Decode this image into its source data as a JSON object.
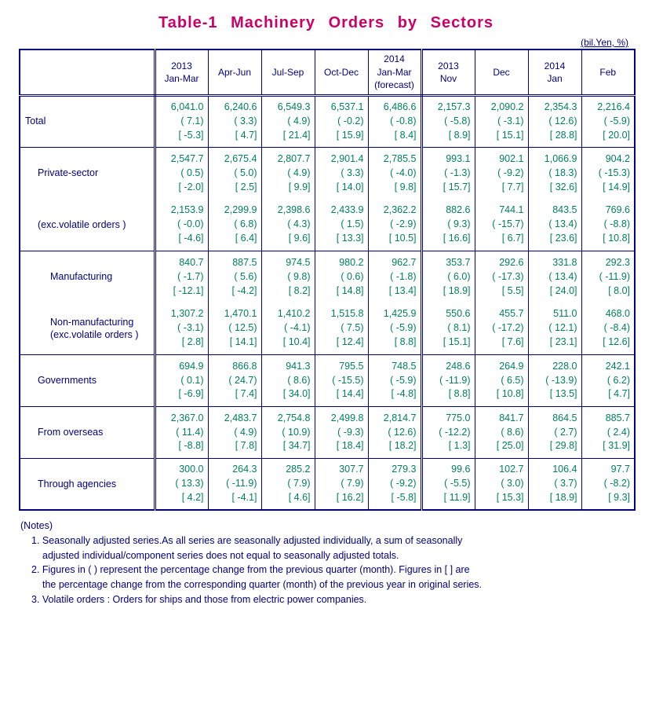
{
  "title": "Table-1  Machinery  Orders  by  Sectors",
  "unit_label": "(bil.Yen, %)",
  "columns": [
    "2013\nJan-Mar",
    "Apr-Jun",
    "Jul-Sep",
    "Oct-Dec",
    "2014\nJan-Mar\n(forecast)",
    "2013\nNov",
    "Dec",
    "2014\nJan",
    "Feb"
  ],
  "column_sep_double_after": [
    4
  ],
  "rows": [
    {
      "label": "Total",
      "indent": 0,
      "cells": [
        {
          "v": "6,041.0",
          "p": "( 7.1)",
          "b": "[ -5.3]"
        },
        {
          "v": "6,240.6",
          "p": "( 3.3)",
          "b": "[ 4.7]"
        },
        {
          "v": "6,549.3",
          "p": "( 4.9)",
          "b": "[ 21.4]"
        },
        {
          "v": "6,537.1",
          "p": "( -0.2)",
          "b": "[ 15.9]"
        },
        {
          "v": "6,486.6",
          "p": "( -0.8)",
          "b": "[ 8.4]"
        },
        {
          "v": "2,157.3",
          "p": "( -5.8)",
          "b": "[ 8.9]"
        },
        {
          "v": "2,090.2",
          "p": "( -3.1)",
          "b": "[ 15.1]"
        },
        {
          "v": "2,354.3",
          "p": "( 12.6)",
          "b": "[ 28.8]"
        },
        {
          "v": "2,216.4",
          "p": "( -5.9)",
          "b": "[ 20.0]"
        }
      ]
    },
    {
      "label": "Private-sector",
      "indent": 1,
      "no_bottom_border": true,
      "cells": [
        {
          "v": "2,547.7",
          "p": "( 0.5)",
          "b": "[ -2.0]"
        },
        {
          "v": "2,675.4",
          "p": "( 5.0)",
          "b": "[ 2.5]"
        },
        {
          "v": "2,807.7",
          "p": "( 4.9)",
          "b": "[ 9.9]"
        },
        {
          "v": "2,901.4",
          "p": "( 3.3)",
          "b": "[ 14.0]"
        },
        {
          "v": "2,785.5",
          "p": "( -4.0)",
          "b": "[ 9.8]"
        },
        {
          "v": "993.1",
          "p": "( -1.3)",
          "b": "[ 15.7]"
        },
        {
          "v": "902.1",
          "p": "( -9.2)",
          "b": "[ 7.7]"
        },
        {
          "v": "1,066.9",
          "p": "( 18.3)",
          "b": "[ 32.6]"
        },
        {
          "v": "904.2",
          "p": "( -15.3)",
          "b": "[ 14.9]"
        }
      ]
    },
    {
      "label": "(exc.volatile orders )",
      "indent": 1,
      "no_top_border": true,
      "cells": [
        {
          "v": "2,153.9",
          "p": "( -0.0)",
          "b": "[ -4.6]"
        },
        {
          "v": "2,299.9",
          "p": "( 6.8)",
          "b": "[ 6.4]"
        },
        {
          "v": "2,398.6",
          "p": "( 4.3)",
          "b": "[ 9.6]"
        },
        {
          "v": "2,433.9",
          "p": "( 1.5)",
          "b": "[ 13.3]"
        },
        {
          "v": "2,362.2",
          "p": "( -2.9)",
          "b": "[ 10.5]"
        },
        {
          "v": "882.6",
          "p": "( 9.3)",
          "b": "[ 16.6]"
        },
        {
          "v": "744.1",
          "p": "( -15.7)",
          "b": "[ 6.7]"
        },
        {
          "v": "843.5",
          "p": "( 13.4)",
          "b": "[ 23.6]"
        },
        {
          "v": "769.6",
          "p": "( -8.8)",
          "b": "[ 10.8]"
        }
      ]
    },
    {
      "label": "Manufacturing",
      "indent": 2,
      "no_bottom_border": true,
      "cells": [
        {
          "v": "840.7",
          "p": "( -1.7)",
          "b": "[ -12.1]"
        },
        {
          "v": "887.5",
          "p": "( 5.6)",
          "b": "[ -4.2]"
        },
        {
          "v": "974.5",
          "p": "( 9.8)",
          "b": "[ 8.2]"
        },
        {
          "v": "980.2",
          "p": "( 0.6)",
          "b": "[ 14.8]"
        },
        {
          "v": "962.7",
          "p": "( -1.8)",
          "b": "[ 13.4]"
        },
        {
          "v": "353.7",
          "p": "( 6.0)",
          "b": "[ 18.9]"
        },
        {
          "v": "292.6",
          "p": "( -17.3)",
          "b": "[ 5.5]"
        },
        {
          "v": "331.8",
          "p": "( 13.4)",
          "b": "[ 24.0]"
        },
        {
          "v": "292.3",
          "p": "( -11.9)",
          "b": "[ 8.0]"
        }
      ]
    },
    {
      "label": "Non-manufacturing\n(exc.volatile orders )",
      "indent": 2,
      "no_top_border": true,
      "cells": [
        {
          "v": "1,307.2",
          "p": "( -3.1)",
          "b": "[ 2.8]"
        },
        {
          "v": "1,470.1",
          "p": "( 12.5)",
          "b": "[ 14.1]"
        },
        {
          "v": "1,410.2",
          "p": "( -4.1)",
          "b": "[ 10.4]"
        },
        {
          "v": "1,515.8",
          "p": "( 7.5)",
          "b": "[ 12.4]"
        },
        {
          "v": "1,425.9",
          "p": "( -5.9)",
          "b": "[ 8.8]"
        },
        {
          "v": "550.6",
          "p": "( 8.1)",
          "b": "[ 15.1]"
        },
        {
          "v": "455.7",
          "p": "( -17.2)",
          "b": "[ 7.6]"
        },
        {
          "v": "511.0",
          "p": "( 12.1)",
          "b": "[ 23.1]"
        },
        {
          "v": "468.0",
          "p": "( -8.4)",
          "b": "[ 12.6]"
        }
      ]
    },
    {
      "label": "Governments",
      "indent": 1,
      "cells": [
        {
          "v": "694.9",
          "p": "( 0.1)",
          "b": "[ -6.9]"
        },
        {
          "v": "866.8",
          "p": "( 24.7)",
          "b": "[ 7.4]"
        },
        {
          "v": "941.3",
          "p": "( 8.6)",
          "b": "[ 34.0]"
        },
        {
          "v": "795.5",
          "p": "( -15.5)",
          "b": "[ 14.4]"
        },
        {
          "v": "748.5",
          "p": "( -5.9)",
          "b": "[ -4.8]"
        },
        {
          "v": "248.6",
          "p": "( -11.9)",
          "b": "[ 8.8]"
        },
        {
          "v": "264.9",
          "p": "( 6.5)",
          "b": "[ 10.8]"
        },
        {
          "v": "228.0",
          "p": "( -13.9)",
          "b": "[ 13.5]"
        },
        {
          "v": "242.1",
          "p": "( 6.2)",
          "b": "[ 4.7]"
        }
      ]
    },
    {
      "label": "From overseas",
      "indent": 1,
      "cells": [
        {
          "v": "2,367.0",
          "p": "( 11.4)",
          "b": "[ -8.8]"
        },
        {
          "v": "2,483.7",
          "p": "( 4.9)",
          "b": "[ 7.8]"
        },
        {
          "v": "2,754.8",
          "p": "( 10.9)",
          "b": "[ 34.7]"
        },
        {
          "v": "2,499.8",
          "p": "( -9.3)",
          "b": "[ 18.4]"
        },
        {
          "v": "2,814.7",
          "p": "( 12.6)",
          "b": "[ 18.2]"
        },
        {
          "v": "775.0",
          "p": "( -12.2)",
          "b": "[ 1.3]"
        },
        {
          "v": "841.7",
          "p": "( 8.6)",
          "b": "[ 25.0]"
        },
        {
          "v": "864.5",
          "p": "( 2.7)",
          "b": "[ 29.8]"
        },
        {
          "v": "885.7",
          "p": "( 2.4)",
          "b": "[ 31.9]"
        }
      ]
    },
    {
      "label": "Through agencies",
      "indent": 1,
      "cells": [
        {
          "v": "300.0",
          "p": "( 13.3)",
          "b": "[ 4.2]"
        },
        {
          "v": "264.3",
          "p": "( -11.9)",
          "b": "[ -4.1]"
        },
        {
          "v": "285.2",
          "p": "( 7.9)",
          "b": "[ 4.6]"
        },
        {
          "v": "307.7",
          "p": "( 7.9)",
          "b": "[ 16.2]"
        },
        {
          "v": "279.3",
          "p": "( -9.2)",
          "b": "[ -5.8]"
        },
        {
          "v": "99.6",
          "p": "( -5.5)",
          "b": "[ 11.9]"
        },
        {
          "v": "102.7",
          "p": "( 3.0)",
          "b": "[ 15.3]"
        },
        {
          "v": "106.4",
          "p": "( 3.7)",
          "b": "[ 18.9]"
        },
        {
          "v": "97.7",
          "p": "( -8.2)",
          "b": "[ 9.3]"
        }
      ]
    }
  ],
  "notes": {
    "head": "(Notes)",
    "items": [
      {
        "lines": [
          "1. Seasonally adjusted series.As all series are seasonally adjusted individually, a sum of seasonally",
          "adjusted individual/component series does not equal to seasonally adjusted totals."
        ]
      },
      {
        "lines": [
          "2. Figures in ( ) represent the percentage change from the previous quarter (month). Figures in [ ] are",
          "the percentage change from the corresponding quarter (month) of the previous year in original series."
        ]
      },
      {
        "lines": [
          "3. Volatile orders : Orders for ships and those from electric power companies."
        ]
      }
    ]
  },
  "colors": {
    "title": "#cc0066",
    "header_text": "#000080",
    "data_text": "#008060",
    "border": "#000080",
    "background": "#ffffff"
  }
}
